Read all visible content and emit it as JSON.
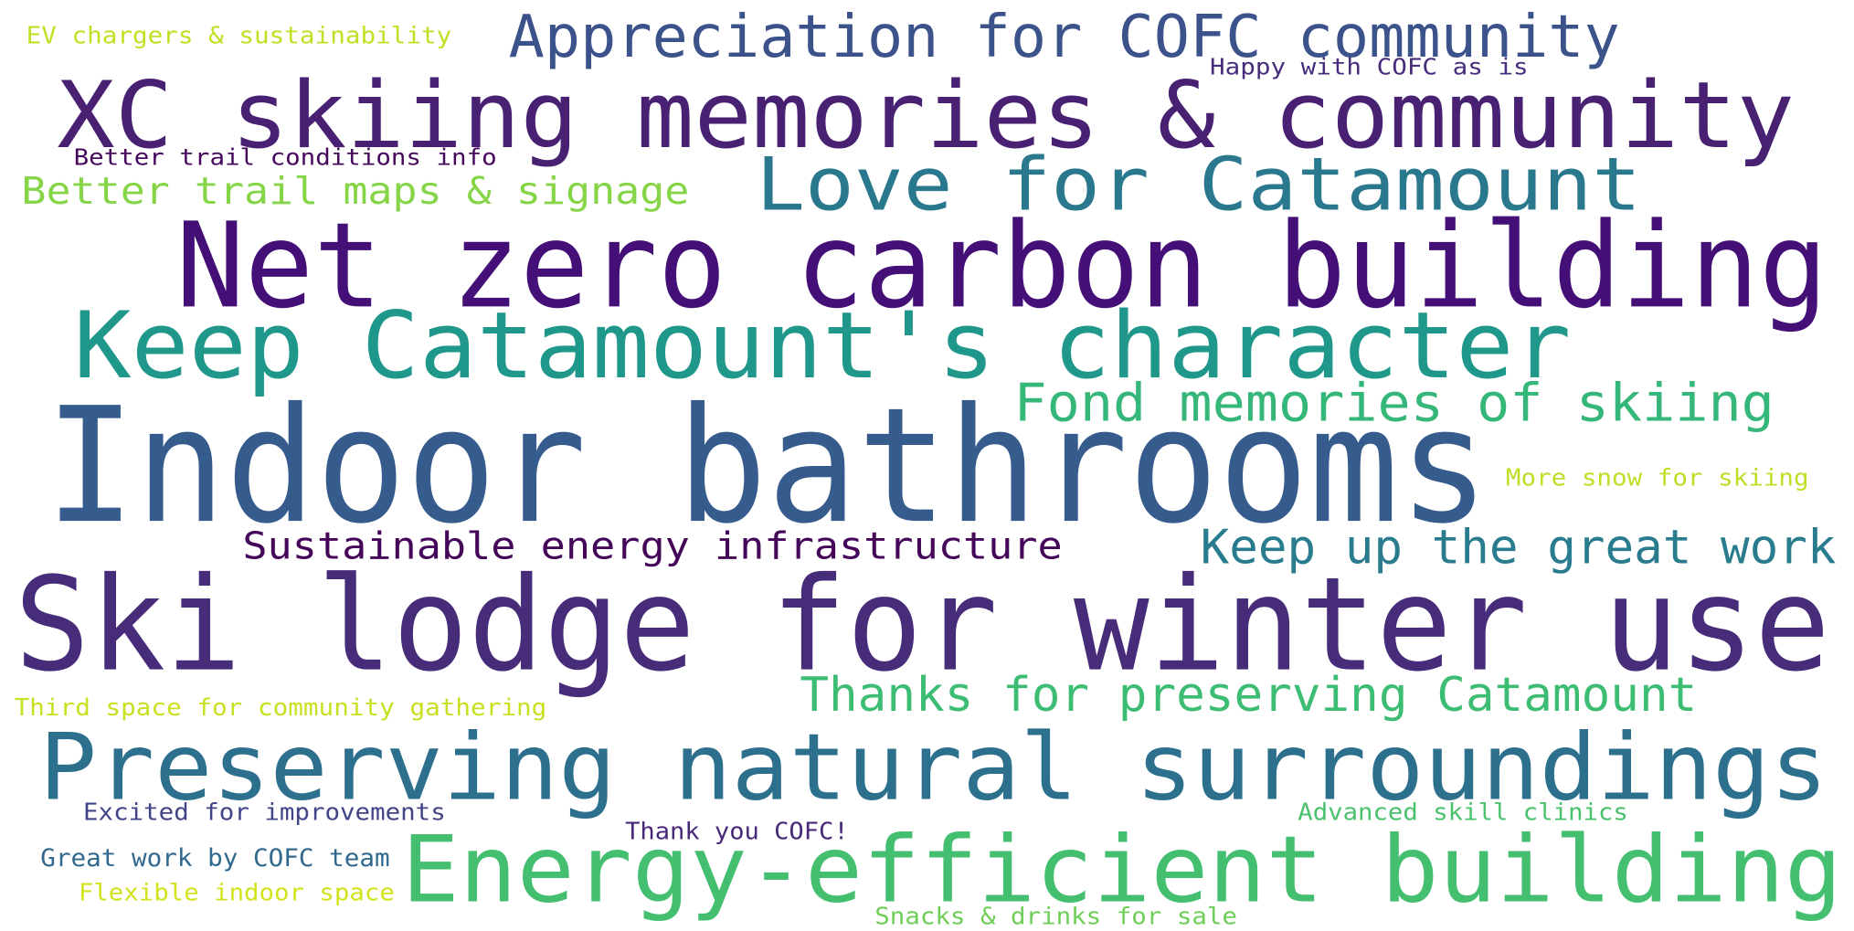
{
  "chart_data": {
    "type": "wordcloud",
    "words": [
      "EV chargers & sustainability",
      "Appreciation for COFC community",
      "Happy with COFC as is",
      "XC skiing memories & community",
      "Better trail conditions info",
      "Better trail maps & signage",
      "Love for Catamount",
      "Net zero carbon building",
      "Keep Catamount's character",
      "Fond memories of skiing",
      "Indoor bathrooms",
      "More snow for skiing",
      "Sustainable energy infrastructure",
      "Keep up the great work",
      "Ski lodge for winter use",
      "Thanks for preserving Catamount",
      "Third space for community gathering",
      "Preserving natural surroundings",
      "Excited for improvements",
      "Advanced skill clinics",
      "Thank you COFC!",
      "Great work by COFC team",
      "Energy-efficient building",
      "Flexible indoor space",
      "Snacks & drinks for sale"
    ],
    "colors": [
      "#c2df23",
      "#3b528b",
      "#472d7b",
      "#482173",
      "#46085c",
      "#86d549",
      "#2a788e",
      "#440f76",
      "#1f988b",
      "#35b779",
      "#365c8d",
      "#bddf26",
      "#450559",
      "#287c8e",
      "#472c7a",
      "#3dbc74",
      "#c8e020",
      "#2d708e",
      "#414487",
      "#4ac16d",
      "#482878",
      "#31688e",
      "#44bf70",
      "#d2e21b",
      "#6ece58"
    ]
  }
}
